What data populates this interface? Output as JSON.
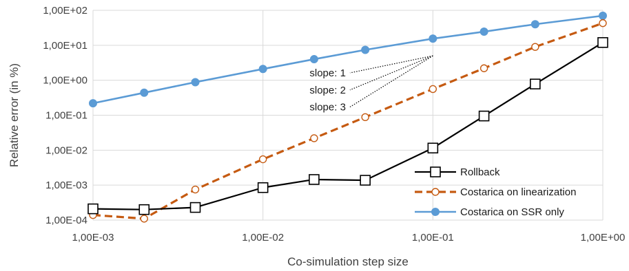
{
  "chart_data": {
    "type": "line",
    "xscale": "log",
    "yscale": "log",
    "xlim": [
      0.001,
      1
    ],
    "ylim": [
      0.0001,
      100
    ],
    "grid": true,
    "xlabel": "Co-simulation step size",
    "ylabel": "Relative error (in %)",
    "x_ticks": [
      {
        "value": 0.001,
        "label": "1,00E-03"
      },
      {
        "value": 0.01,
        "label": "1,00E-02"
      },
      {
        "value": 0.1,
        "label": "1,00E-01"
      },
      {
        "value": 1,
        "label": "1,00E+00"
      }
    ],
    "y_ticks": [
      {
        "value": 0.0001,
        "label": "1,00E-04"
      },
      {
        "value": 0.001,
        "label": "1,00E-03"
      },
      {
        "value": 0.01,
        "label": "1,00E-02"
      },
      {
        "value": 0.1,
        "label": "1,00E-01"
      },
      {
        "value": 1,
        "label": "1,00E+00"
      },
      {
        "value": 10,
        "label": "1,00E+01"
      },
      {
        "value": 100,
        "label": "1,00E+02"
      }
    ],
    "legend_position": "bottom-right",
    "series": [
      {
        "name": "Rollback",
        "color": "#000000",
        "line_style": "solid",
        "marker": "open-square",
        "x": [
          0.001,
          0.002,
          0.004,
          0.01,
          0.02,
          0.04,
          0.1,
          0.2,
          0.4,
          1
        ],
        "y": [
          0.00021,
          0.0002,
          0.00023,
          0.00085,
          0.00145,
          0.00138,
          0.0115,
          0.095,
          0.78,
          12
        ]
      },
      {
        "name": "Costarica on linearization",
        "color": "#C55A11",
        "line_style": "dashed",
        "marker": "open-circle",
        "x": [
          0.001,
          0.002,
          0.004,
          0.01,
          0.02,
          0.04,
          0.1,
          0.2,
          0.4,
          1
        ],
        "y": [
          0.00014,
          0.00011,
          0.00075,
          0.0055,
          0.022,
          0.088,
          0.56,
          2.2,
          9,
          43
        ]
      },
      {
        "name": "Costarica on SSR only",
        "color": "#5B9BD5",
        "line_style": "solid",
        "marker": "filled-circle",
        "x": [
          0.001,
          0.002,
          0.004,
          0.01,
          0.02,
          0.04,
          0.1,
          0.2,
          0.4,
          1
        ],
        "y": [
          0.22,
          0.44,
          0.88,
          2.1,
          4.0,
          7.4,
          15.5,
          24.5,
          40,
          70
        ]
      }
    ],
    "annotations": [
      {
        "text": "slope: 1",
        "slope": 1
      },
      {
        "text": "slope: 2",
        "slope": 2
      },
      {
        "text": "slope: 3",
        "slope": 3
      }
    ],
    "reference_anchor": {
      "x": 0.1,
      "y": 5
    }
  }
}
